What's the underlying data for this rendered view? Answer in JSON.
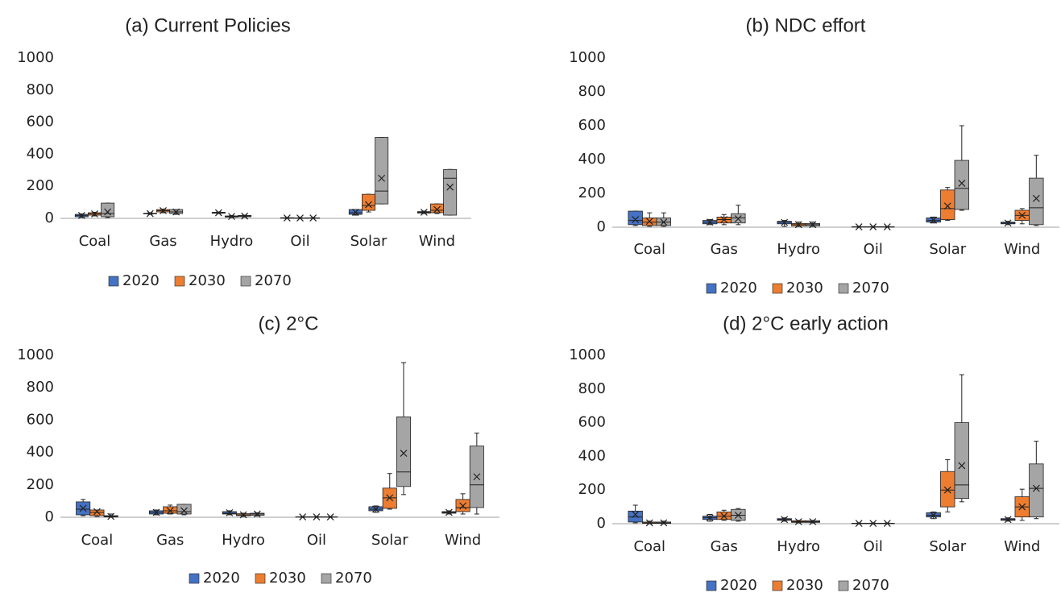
{
  "chart_data": [
    {
      "type": "box",
      "title": "(a) Current Policies",
      "categories": [
        "Coal",
        "Gas",
        "Hydro",
        "Oil",
        "Solar",
        "Wind"
      ],
      "ylim": [
        0,
        1000
      ],
      "yticks": [
        0,
        200,
        400,
        600,
        800,
        1000
      ],
      "legend": "bottom",
      "series": [
        {
          "name": "2020",
          "color": "#4472c4",
          "min": [
            5,
            25,
            30,
            0,
            20,
            30
          ],
          "q1": [
            10,
            28,
            32,
            1,
            25,
            33
          ],
          "median": [
            18,
            30,
            35,
            2,
            35,
            38
          ],
          "q3": [
            25,
            32,
            38,
            4,
            55,
            42
          ],
          "max": [
            28,
            35,
            40,
            5,
            55,
            45
          ],
          "mean": [
            18,
            30,
            35,
            2,
            38,
            38
          ]
        },
        {
          "name": "2030",
          "color": "#ed7d31",
          "min": [
            15,
            35,
            5,
            0,
            40,
            30
          ],
          "q1": [
            20,
            40,
            8,
            1,
            50,
            35
          ],
          "median": [
            28,
            48,
            12,
            2,
            80,
            50
          ],
          "q3": [
            35,
            55,
            15,
            3,
            150,
            90
          ],
          "max": [
            38,
            58,
            18,
            4,
            150,
            90
          ],
          "mean": [
            28,
            48,
            12,
            2,
            85,
            55
          ]
        },
        {
          "name": "2070",
          "color": "#a5a5a5",
          "min": [
            5,
            25,
            8,
            0,
            90,
            20
          ],
          "q1": [
            10,
            30,
            10,
            1,
            90,
            20
          ],
          "median": [
            30,
            40,
            15,
            2,
            170,
            250
          ],
          "q3": [
            95,
            55,
            18,
            3,
            505,
            305
          ],
          "max": [
            95,
            55,
            20,
            4,
            505,
            305
          ],
          "mean": [
            40,
            40,
            14,
            2,
            250,
            195
          ]
        }
      ]
    },
    {
      "type": "box",
      "title": "(b) NDC effort",
      "categories": [
        "Coal",
        "Gas",
        "Hydro",
        "Oil",
        "Solar",
        "Wind"
      ],
      "ylim": [
        0,
        1000
      ],
      "yticks": [
        0,
        200,
        400,
        600,
        800,
        1000
      ],
      "legend": "bottom",
      "series": [
        {
          "name": "2020",
          "color": "#4472c4",
          "min": [
            10,
            15,
            5,
            0,
            25,
            15
          ],
          "q1": [
            15,
            20,
            20,
            1,
            30,
            20
          ],
          "median": [
            40,
            30,
            30,
            2,
            40,
            25
          ],
          "q3": [
            95,
            40,
            35,
            3,
            55,
            30
          ],
          "max": [
            95,
            45,
            40,
            4,
            60,
            35
          ],
          "mean": [
            45,
            30,
            28,
            2,
            42,
            25
          ]
        },
        {
          "name": "2030",
          "color": "#ed7d31",
          "min": [
            5,
            15,
            5,
            0,
            40,
            20
          ],
          "q1": [
            10,
            25,
            8,
            1,
            45,
            40
          ],
          "median": [
            30,
            45,
            15,
            2,
            110,
            70
          ],
          "q3": [
            55,
            60,
            22,
            3,
            220,
            100
          ],
          "max": [
            85,
            75,
            30,
            4,
            235,
            110
          ],
          "mean": [
            35,
            45,
            15,
            2,
            125,
            70
          ]
        },
        {
          "name": "2070",
          "color": "#a5a5a5",
          "min": [
            5,
            15,
            5,
            0,
            100,
            10
          ],
          "q1": [
            10,
            25,
            8,
            1,
            105,
            15
          ],
          "median": [
            30,
            55,
            15,
            2,
            230,
            115
          ],
          "q3": [
            55,
            80,
            22,
            3,
            395,
            290
          ],
          "max": [
            85,
            130,
            30,
            4,
            600,
            425
          ],
          "mean": [
            30,
            50,
            15,
            2,
            260,
            170
          ]
        }
      ]
    },
    {
      "type": "box",
      "title": "(c) 2°C",
      "categories": [
        "Coal",
        "Gas",
        "Hydro",
        "Oil",
        "Solar",
        "Wind"
      ],
      "ylim": [
        0,
        1000
      ],
      "yticks": [
        0,
        200,
        400,
        600,
        800,
        1000
      ],
      "legend": "bottom",
      "series": [
        {
          "name": "2020",
          "color": "#4472c4",
          "min": [
            10,
            15,
            15,
            0,
            30,
            20
          ],
          "q1": [
            15,
            20,
            20,
            1,
            40,
            25
          ],
          "median": [
            50,
            30,
            25,
            2,
            50,
            30
          ],
          "q3": [
            95,
            40,
            35,
            3,
            65,
            35
          ],
          "max": [
            110,
            45,
            40,
            4,
            70,
            40
          ],
          "mean": [
            55,
            30,
            28,
            2,
            50,
            30
          ]
        },
        {
          "name": "2030",
          "color": "#ed7d31",
          "min": [
            5,
            20,
            5,
            0,
            50,
            20
          ],
          "q1": [
            10,
            25,
            10,
            1,
            55,
            35
          ],
          "median": [
            30,
            40,
            15,
            2,
            120,
            60
          ],
          "q3": [
            45,
            65,
            22,
            3,
            180,
            110
          ],
          "max": [
            45,
            75,
            25,
            4,
            270,
            145
          ],
          "mean": [
            35,
            40,
            15,
            2,
            120,
            70
          ]
        },
        {
          "name": "2070",
          "color": "#a5a5a5",
          "min": [
            0,
            15,
            8,
            0,
            140,
            20
          ],
          "q1": [
            2,
            20,
            12,
            1,
            190,
            60
          ],
          "median": [
            5,
            35,
            20,
            2,
            280,
            200
          ],
          "q3": [
            10,
            80,
            25,
            3,
            620,
            440
          ],
          "max": [
            20,
            80,
            28,
            4,
            955,
            520
          ],
          "mean": [
            5,
            40,
            20,
            2,
            395,
            250
          ]
        }
      ]
    },
    {
      "type": "box",
      "title": "(d) 2°C early action",
      "categories": [
        "Coal",
        "Gas",
        "Hydro",
        "Oil",
        "Solar",
        "Wind"
      ],
      "ylim": [
        0,
        1000
      ],
      "yticks": [
        0,
        200,
        400,
        600,
        800,
        1000
      ],
      "legend": "bottom",
      "series": [
        {
          "name": "2020",
          "color": "#4472c4",
          "min": [
            5,
            15,
            15,
            0,
            30,
            15
          ],
          "q1": [
            10,
            25,
            20,
            1,
            40,
            20
          ],
          "median": [
            40,
            35,
            25,
            2,
            50,
            25
          ],
          "q3": [
            75,
            45,
            30,
            3,
            65,
            30
          ],
          "max": [
            110,
            55,
            35,
            4,
            70,
            35
          ],
          "mean": [
            55,
            35,
            25,
            2,
            50,
            25
          ]
        },
        {
          "name": "2030",
          "color": "#ed7d31",
          "min": [
            0,
            20,
            5,
            0,
            70,
            20
          ],
          "q1": [
            2,
            25,
            8,
            1,
            100,
            40
          ],
          "median": [
            5,
            45,
            12,
            2,
            200,
            100
          ],
          "q3": [
            10,
            70,
            18,
            3,
            310,
            160
          ],
          "max": [
            15,
            80,
            20,
            4,
            380,
            205
          ],
          "mean": [
            5,
            45,
            12,
            2,
            200,
            100
          ]
        },
        {
          "name": "2070",
          "color": "#a5a5a5",
          "min": [
            0,
            15,
            5,
            0,
            130,
            30
          ],
          "q1": [
            2,
            20,
            8,
            1,
            150,
            40
          ],
          "median": [
            5,
            50,
            12,
            2,
            230,
            210
          ],
          "q3": [
            10,
            85,
            18,
            3,
            600,
            355
          ],
          "max": [
            15,
            90,
            20,
            4,
            885,
            490
          ],
          "mean": [
            5,
            50,
            12,
            2,
            345,
            210
          ]
        }
      ]
    }
  ]
}
